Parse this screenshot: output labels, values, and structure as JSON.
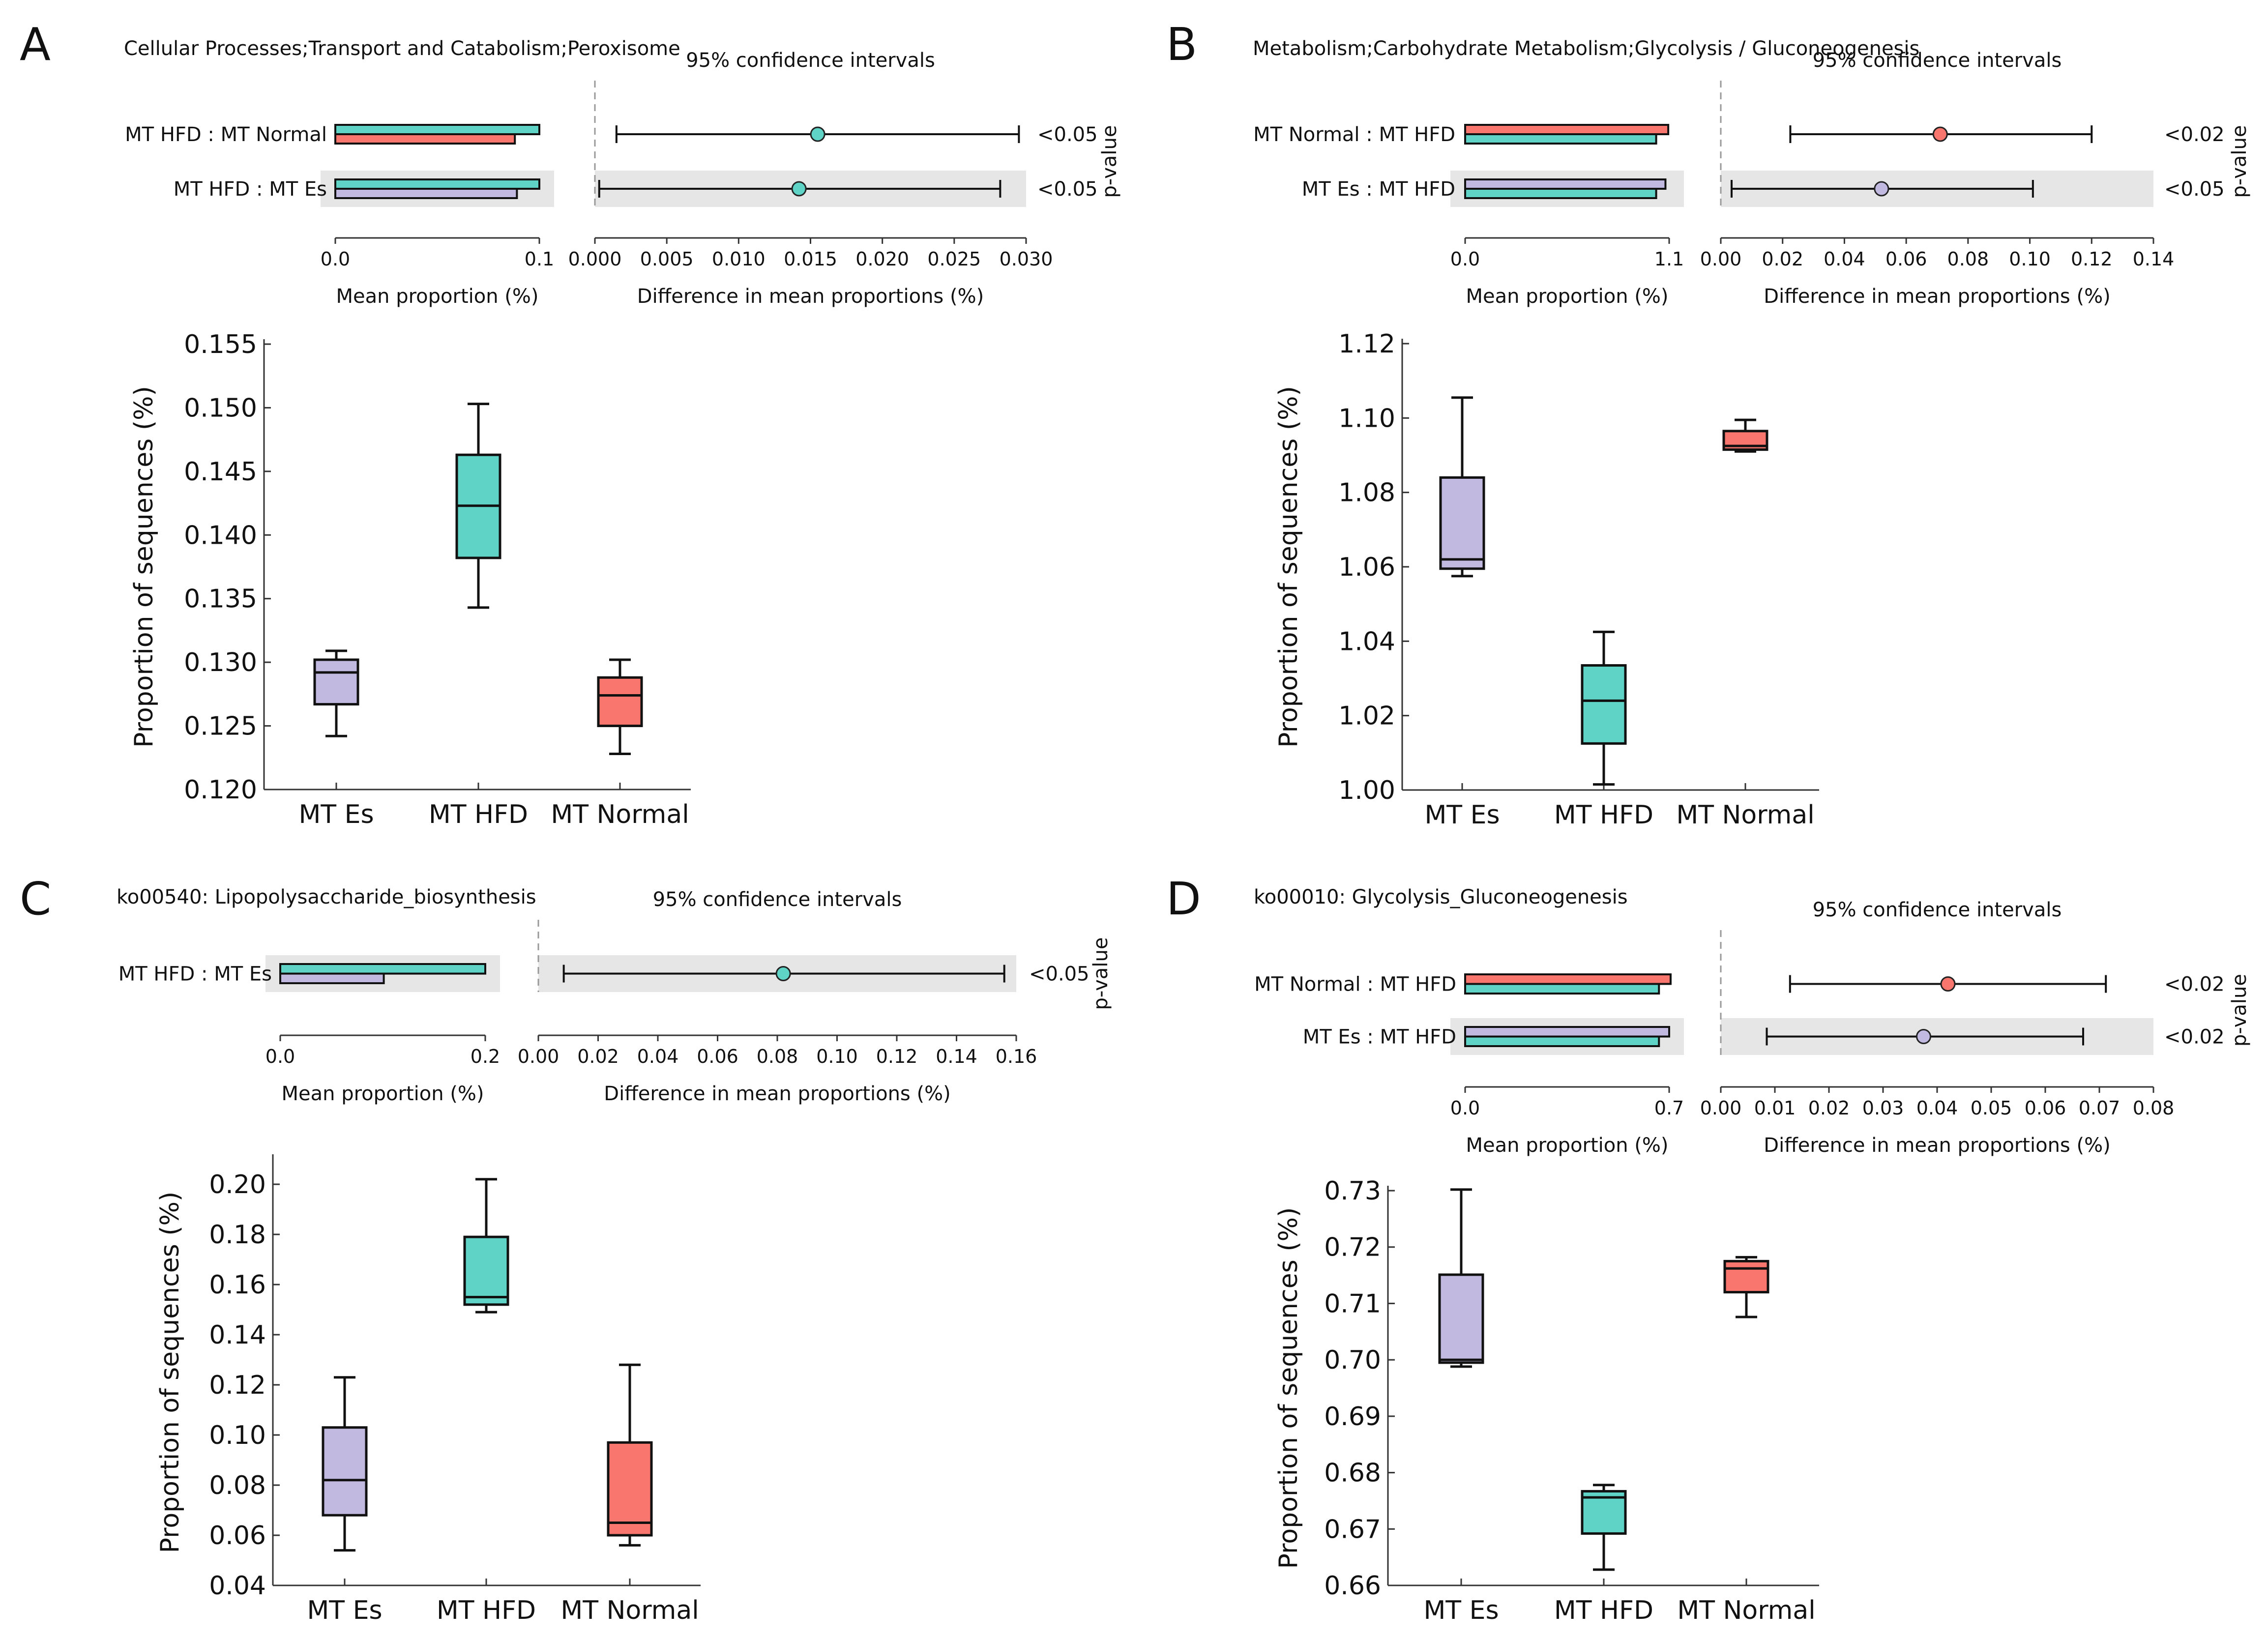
{
  "colors": {
    "mt_es": "#c2b9e0",
    "mt_hfd": "#5ed3c6",
    "mt_normal": "#f8766d",
    "ci_band": "#e6e6e6"
  },
  "common": {
    "ci_label": "95% confidence intervals",
    "p_label": "p-value",
    "mean_label": "Mean proportion (%)",
    "diff_label": "Difference in mean proportions (%)",
    "box_ylabel": "Proportion of sequences (%)"
  },
  "chart_data": [
    {
      "type": "bar",
      "panel": "A",
      "title": "Cellular Processes;Transport and Catabolism;Peroxisome",
      "mean_axis": {
        "range": [
          0,
          0.1
        ],
        "ticks": [
          "0.0",
          "0.1"
        ]
      },
      "diff_axis": {
        "range": [
          0,
          0.03
        ],
        "ticks": [
          "0.000",
          "0.005",
          "0.010",
          "0.015",
          "0.020",
          "0.025",
          "0.030"
        ]
      },
      "comparisons": [
        {
          "label": "MT HFD : MT Normal",
          "pvalue": "<0.05",
          "bars": [
            {
              "group": "mt_hfd",
              "value": 0.1
            },
            {
              "group": "mt_normal",
              "value": 0.088
            }
          ],
          "diff": {
            "mean": 0.0155,
            "low": 0.0015,
            "high": 0.0295
          },
          "dot": "mt_hfd",
          "shaded": false
        },
        {
          "label": "MT HFD : MT Es",
          "pvalue": "<0.05",
          "bars": [
            {
              "group": "mt_hfd",
              "value": 0.1
            },
            {
              "group": "mt_es",
              "value": 0.089
            }
          ],
          "diff": {
            "mean": 0.0142,
            "low": 0.0003,
            "high": 0.0282
          },
          "dot": "mt_hfd",
          "shaded": true
        }
      ]
    },
    {
      "type": "box",
      "panel": "A",
      "categories": [
        "MT Es",
        "MT HFD",
        "MT Normal"
      ],
      "ylim": [
        0.12,
        0.155
      ],
      "yticks": [
        "0.120",
        "0.125",
        "0.130",
        "0.135",
        "0.140",
        "0.145",
        "0.150",
        "0.155"
      ],
      "boxes": [
        {
          "group": "mt_es",
          "min": 0.1242,
          "q1": 0.1267,
          "median": 0.1292,
          "q3": 0.1302,
          "max": 0.1309
        },
        {
          "group": "mt_hfd",
          "min": 0.1343,
          "q1": 0.1382,
          "median": 0.1423,
          "q3": 0.1463,
          "max": 0.1503
        },
        {
          "group": "mt_normal",
          "min": 0.1228,
          "q1": 0.125,
          "median": 0.1274,
          "q3": 0.1288,
          "max": 0.1302
        }
      ]
    },
    {
      "type": "bar",
      "panel": "B",
      "title": "Metabolism;Carbohydrate Metabolism;Glycolysis / Gluconeogenesis",
      "mean_axis": {
        "range": [
          0,
          1.1
        ],
        "ticks": [
          "0.0",
          "1.1"
        ]
      },
      "diff_axis": {
        "range": [
          0,
          0.14
        ],
        "ticks": [
          "0.00",
          "0.02",
          "0.04",
          "0.06",
          "0.08",
          "0.10",
          "0.12",
          "0.14"
        ]
      },
      "comparisons": [
        {
          "label": "MT Normal : MT HFD",
          "pvalue": "<0.02",
          "bars": [
            {
              "group": "mt_normal",
              "value": 1.095
            },
            {
              "group": "mt_hfd",
              "value": 1.03
            }
          ],
          "diff": {
            "mean": 0.071,
            "low": 0.0225,
            "high": 0.12
          },
          "dot": "mt_normal",
          "shaded": false
        },
        {
          "label": "MT Es : MT HFD",
          "pvalue": "<0.05",
          "bars": [
            {
              "group": "mt_es",
              "value": 1.08
            },
            {
              "group": "mt_hfd",
              "value": 1.03
            }
          ],
          "diff": {
            "mean": 0.052,
            "low": 0.0035,
            "high": 0.101
          },
          "dot": "mt_es",
          "shaded": true
        }
      ]
    },
    {
      "type": "box",
      "panel": "B",
      "categories": [
        "MT Es",
        "MT HFD",
        "MT Normal"
      ],
      "ylim": [
        1.0,
        1.12
      ],
      "yticks": [
        "1.00",
        "1.02",
        "1.04",
        "1.06",
        "1.08",
        "1.10",
        "1.12"
      ],
      "boxes": [
        {
          "group": "mt_es",
          "min": 1.0575,
          "q1": 1.0595,
          "median": 1.062,
          "q3": 1.084,
          "max": 1.1055
        },
        {
          "group": "mt_hfd",
          "min": 1.0015,
          "q1": 1.0125,
          "median": 1.024,
          "q3": 1.0335,
          "max": 1.0425
        },
        {
          "group": "mt_normal",
          "min": 1.091,
          "q1": 1.0915,
          "median": 1.0925,
          "q3": 1.0965,
          "max": 1.0995
        }
      ]
    },
    {
      "type": "bar",
      "panel": "C",
      "title": "ko00540: Lipopolysaccharide_biosynthesis",
      "mean_axis": {
        "range": [
          0,
          0.2
        ],
        "ticks": [
          "0.0",
          "0.2"
        ]
      },
      "diff_axis": {
        "range": [
          0,
          0.16
        ],
        "ticks": [
          "0.00",
          "0.02",
          "0.04",
          "0.06",
          "0.08",
          "0.10",
          "0.12",
          "0.14",
          "0.16"
        ]
      },
      "comparisons": [
        {
          "label": "MT HFD : MT Es",
          "pvalue": "<0.05",
          "bars": [
            {
              "group": "mt_hfd",
              "value": 0.2
            },
            {
              "group": "mt_es",
              "value": 0.101
            }
          ],
          "diff": {
            "mean": 0.082,
            "low": 0.0085,
            "high": 0.156
          },
          "dot": "mt_hfd",
          "shaded": true
        }
      ]
    },
    {
      "type": "box",
      "panel": "C",
      "categories": [
        "MT Es",
        "MT HFD",
        "MT Normal"
      ],
      "ylim": [
        0.04,
        0.21
      ],
      "yticks": [
        "0.04",
        "0.06",
        "0.08",
        "0.10",
        "0.12",
        "0.14",
        "0.16",
        "0.18",
        "0.20"
      ],
      "boxes": [
        {
          "group": "mt_es",
          "min": 0.054,
          "q1": 0.068,
          "median": 0.082,
          "q3": 0.103,
          "max": 0.123
        },
        {
          "group": "mt_hfd",
          "min": 0.149,
          "q1": 0.152,
          "median": 0.155,
          "q3": 0.179,
          "max": 0.202
        },
        {
          "group": "mt_normal",
          "min": 0.056,
          "q1": 0.06,
          "median": 0.065,
          "q3": 0.097,
          "max": 0.128
        }
      ]
    },
    {
      "type": "bar",
      "panel": "D",
      "title": "ko00010: Glycolysis_Gluconeogenesis",
      "mean_axis": {
        "range": [
          0,
          0.7
        ],
        "ticks": [
          "0.0",
          "0.7"
        ]
      },
      "diff_axis": {
        "range": [
          0,
          0.08
        ],
        "ticks": [
          "0.00",
          "0.01",
          "0.02",
          "0.03",
          "0.04",
          "0.05",
          "0.06",
          "0.07",
          "0.08"
        ]
      },
      "comparisons": [
        {
          "label": "MT Normal : MT HFD",
          "pvalue": "<0.02",
          "bars": [
            {
              "group": "mt_normal",
              "value": 0.705
            },
            {
              "group": "mt_hfd",
              "value": 0.665
            }
          ],
          "diff": {
            "mean": 0.042,
            "low": 0.0128,
            "high": 0.0712
          },
          "dot": "mt_normal",
          "shaded": false
        },
        {
          "label": "MT Es : MT HFD",
          "pvalue": "<0.02",
          "bars": [
            {
              "group": "mt_es",
              "value": 0.7
            },
            {
              "group": "mt_hfd",
              "value": 0.665
            }
          ],
          "diff": {
            "mean": 0.0375,
            "low": 0.0085,
            "high": 0.067
          },
          "dot": "mt_es",
          "shaded": true
        }
      ]
    },
    {
      "type": "box",
      "panel": "D",
      "categories": [
        "MT Es",
        "MT HFD",
        "MT Normal"
      ],
      "ylim": [
        0.66,
        0.73
      ],
      "yticks": [
        "0.66",
        "0.67",
        "0.68",
        "0.69",
        "0.70",
        "0.71",
        "0.72",
        "0.73"
      ],
      "boxes": [
        {
          "group": "mt_es",
          "min": 0.6988,
          "q1": 0.6995,
          "median": 0.7,
          "q3": 0.7151,
          "max": 0.7302
        },
        {
          "group": "mt_hfd",
          "min": 0.6628,
          "q1": 0.6692,
          "median": 0.6756,
          "q3": 0.6767,
          "max": 0.6778
        },
        {
          "group": "mt_normal",
          "min": 0.7076,
          "q1": 0.712,
          "median": 0.7162,
          "q3": 0.7175,
          "max": 0.7182
        }
      ]
    }
  ]
}
